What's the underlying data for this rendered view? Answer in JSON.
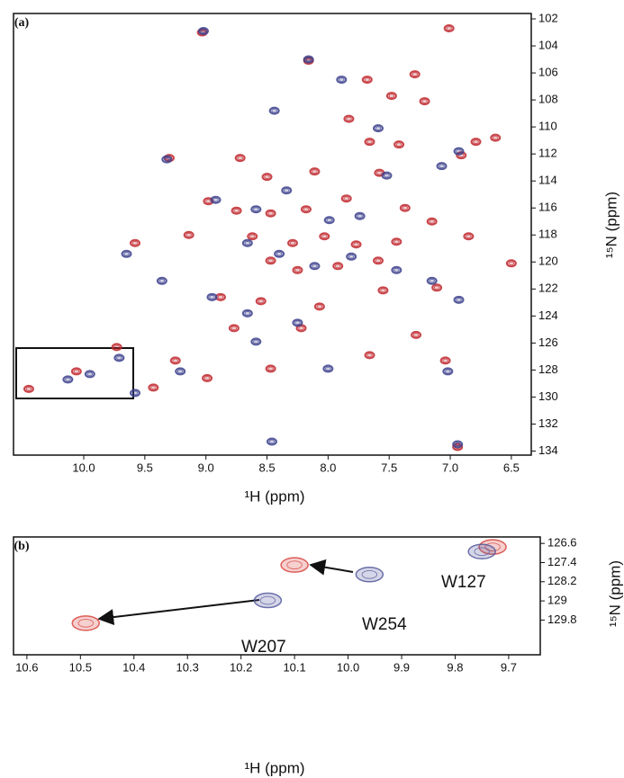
{
  "chart_data": [
    {
      "type": "scatter",
      "panel_label": "(a)",
      "x_label": "¹H (ppm)",
      "y_label": "¹⁵N (ppm)",
      "xlim": [
        6.337,
        10.575
      ],
      "x_reversed": true,
      "ylim": [
        101.6,
        134.3
      ],
      "y_reversed": true,
      "xticks": [
        {
          "value": 10,
          "label": "10.0"
        },
        9.5,
        {
          "value": 9,
          "label": "9.0"
        },
        8.5,
        {
          "value": 8,
          "label": "8.0"
        },
        7.5,
        {
          "value": 7,
          "label": "7.0"
        },
        6.5
      ],
      "yticks": [
        102,
        104,
        106,
        108,
        110,
        112,
        114,
        116,
        118,
        120,
        122,
        124,
        126,
        128,
        130,
        132,
        134
      ],
      "series": [
        {
          "color": "#c0272d",
          "x": [
            9.03,
            7.01,
            8.16,
            7.29,
            7.68,
            7.48,
            7.21,
            7.83,
            7.42,
            7.66,
            6.91,
            6.79,
            6.63,
            9.3,
            8.72,
            8.5,
            8.11,
            7.58,
            8.98,
            8.75,
            8.47,
            8.18,
            7.85,
            7.37,
            7.15,
            9.14,
            8.62,
            8.29,
            8.03,
            7.77,
            7.44,
            8.47,
            8.25,
            7.92,
            7.59,
            6.85,
            6.5,
            8.88,
            8.55,
            8.07,
            7.55,
            7.11,
            8.77,
            8.22,
            7.66,
            8.47,
            8.99,
            9.25,
            9.43,
            10.06,
            10.45,
            7.04,
            6.94,
            9.58,
            9.73,
            7.28
          ],
          "y": [
            103.0,
            102.7,
            105.1,
            106.1,
            106.5,
            107.7,
            108.1,
            109.4,
            111.3,
            111.1,
            112.1,
            111.1,
            110.8,
            112.3,
            112.3,
            113.7,
            113.3,
            113.4,
            115.5,
            116.2,
            116.4,
            116.1,
            115.3,
            116.0,
            117.0,
            118.0,
            118.1,
            118.6,
            118.1,
            118.7,
            118.5,
            119.9,
            120.6,
            120.3,
            119.9,
            118.1,
            120.1,
            122.6,
            122.9,
            123.3,
            122.1,
            121.9,
            124.9,
            124.9,
            126.9,
            127.9,
            128.6,
            127.3,
            129.3,
            128.1,
            129.4,
            127.3,
            133.7,
            118.6,
            126.3,
            125.4
          ]
        },
        {
          "color": "#3b3f8c",
          "x": [
            9.02,
            8.16,
            7.89,
            8.44,
            7.59,
            6.93,
            7.07,
            7.52,
            9.32,
            8.34,
            8.92,
            8.59,
            7.99,
            7.74,
            8.66,
            8.4,
            8.11,
            7.81,
            7.44,
            9.65,
            9.36,
            8.95,
            8.66,
            8.25,
            8.59,
            7.15,
            6.93,
            9.58,
            9.71,
            9.95,
            10.13,
            8.0,
            7.02,
            6.94,
            9.21,
            8.46
          ],
          "y": [
            102.9,
            105.0,
            106.5,
            108.8,
            110.1,
            111.8,
            112.9,
            113.6,
            112.4,
            114.7,
            115.4,
            116.1,
            116.9,
            116.6,
            118.6,
            119.4,
            120.3,
            119.6,
            120.6,
            119.4,
            121.4,
            122.6,
            123.8,
            124.5,
            125.9,
            121.4,
            122.8,
            129.7,
            127.1,
            128.3,
            128.7,
            127.9,
            128.1,
            133.5,
            128.1,
            133.3
          ]
        }
      ]
    },
    {
      "type": "scatter",
      "panel_label": "(b)",
      "x_label": "¹H (ppm)",
      "y_label": "¹⁵N (ppm)",
      "xlim": [
        9.641,
        10.625
      ],
      "x_reversed": true,
      "ylim": [
        126.33,
        131.25
      ],
      "y_reversed": true,
      "xticks": [
        10.6,
        10.5,
        10.4,
        10.3,
        10.2,
        10.1,
        {
          "value": 10,
          "label": "10.0"
        },
        9.9,
        9.8,
        9.7
      ],
      "yticks": [
        126.6,
        127.4,
        128.2,
        129.0,
        129.8
      ],
      "series": [
        {
          "color": "#d8453f",
          "x": [
            10.49,
            10.1,
            9.73
          ],
          "y": [
            129.93,
            127.5,
            126.75
          ]
        },
        {
          "color": "#565a9e",
          "x": [
            10.15,
            9.96,
            9.75
          ],
          "y": [
            128.98,
            127.9,
            126.94
          ]
        }
      ],
      "annotations": [
        "W207",
        "W254",
        "W127"
      ]
    }
  ]
}
